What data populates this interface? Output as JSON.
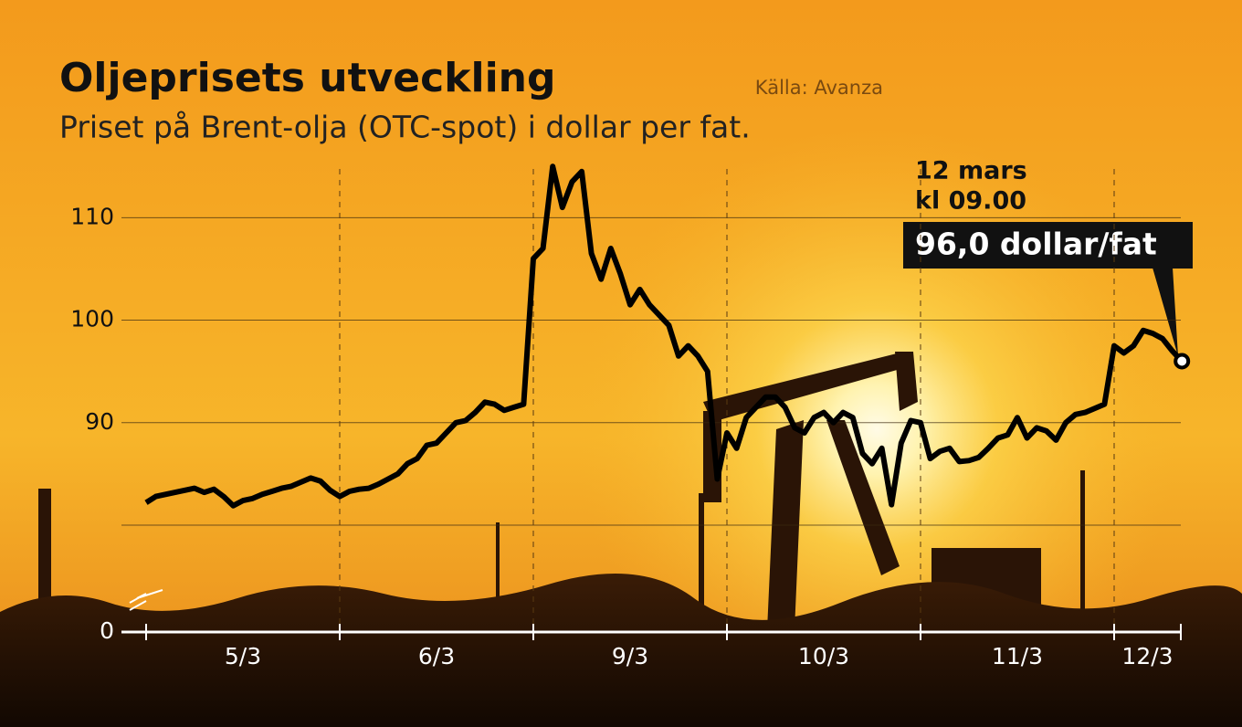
{
  "chart_data": {
    "type": "line",
    "title": "Oljeprisets utveckling",
    "subtitle": "Priset på Brent-olja (OTC-spot) i dollar per fat.",
    "source": "Källa: Avanza",
    "days": [
      {
        "label": "5/3",
        "values": [
          82.2,
          82.8,
          83,
          83.2,
          83.4,
          83.6,
          83.2,
          83.5,
          82.8,
          81.9,
          82.4,
          82.6,
          83,
          83.3,
          83.6,
          83.8,
          84.2,
          84.6,
          84.3,
          83.4
        ]
      },
      {
        "label": "6/3",
        "values": [
          82.8,
          83.3,
          83.5,
          83.6,
          84,
          84.5,
          85,
          86,
          86.5,
          87.8,
          88,
          89,
          90,
          90.2,
          91,
          92,
          91.8,
          91.2,
          91.5,
          91.8
        ]
      },
      {
        "label": "9/3",
        "values": [
          106,
          107,
          115,
          111,
          113.5,
          114.5,
          106.5,
          104,
          107,
          104.5,
          101.5,
          103,
          101.5,
          100.5,
          99.5,
          96.5,
          97.5,
          96.5,
          95,
          84.5
        ]
      },
      {
        "label": "10/3",
        "values": [
          89,
          87.5,
          90.5,
          91.5,
          92.5,
          92.5,
          91.5,
          89.5,
          89,
          90.5,
          91,
          90,
          91,
          90.5,
          87,
          86,
          87.5,
          82,
          88,
          90.2
        ]
      },
      {
        "label": "11/3",
        "values": [
          90,
          86.5,
          87.2,
          87.5,
          86.2,
          86.3,
          86.6,
          87.5,
          88.5,
          88.8,
          90.5,
          88.5,
          89.5,
          89.2,
          88.3,
          90,
          90.8,
          91,
          91.4,
          91.8
        ]
      },
      {
        "label": "12/3",
        "values": [
          97.5,
          96.8,
          97.5,
          99,
          98.7,
          98.2,
          97,
          96
        ]
      }
    ],
    "color": "#000000",
    "ylim": [
      80,
      116
    ],
    "yticks": [
      {
        "value": 80,
        "label": null
      },
      90,
      100,
      110
    ],
    "ybreak": 0,
    "grid": true,
    "annotation": {
      "date": "12 mars",
      "time": "kl 09.00",
      "label": "96,0 dollar/fat"
    }
  }
}
